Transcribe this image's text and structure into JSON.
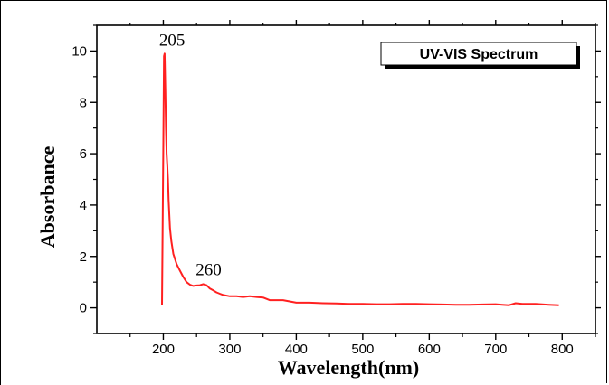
{
  "chart_data": {
    "type": "line",
    "title": "",
    "legend_label": "UV-VIS Spectrum",
    "legend_position": "top-right",
    "xlabel": "Wavelength(nm)",
    "ylabel": "Absorbance",
    "xlim": [
      100,
      850
    ],
    "ylim": [
      -1,
      11
    ],
    "xticks": [
      200,
      300,
      400,
      500,
      600,
      700,
      800
    ],
    "yticks": [
      0,
      2,
      4,
      6,
      8,
      10
    ],
    "grid": false,
    "series_color": "#ff2020",
    "annotations": [
      {
        "text": "205",
        "x": 205,
        "y": 10.0
      },
      {
        "text": "260",
        "x": 260,
        "y": 1.05
      }
    ],
    "series": [
      {
        "x": [
          198,
          200,
          201,
          202,
          203,
          204,
          205,
          206,
          207,
          208,
          210,
          212,
          215,
          220,
          225,
          230,
          235,
          240,
          245,
          250,
          255,
          260,
          265,
          270,
          275,
          280,
          285,
          290,
          300,
          310,
          320,
          330,
          340,
          350,
          360,
          370,
          380,
          390,
          400,
          420,
          440,
          460,
          480,
          500,
          520,
          540,
          560,
          580,
          600,
          620,
          640,
          660,
          680,
          700,
          710,
          720,
          730,
          740,
          760,
          780,
          795
        ],
        "y": [
          0.1,
          6.5,
          9.8,
          9.9,
          8.5,
          7.0,
          6.0,
          5.5,
          5.0,
          4.2,
          3.1,
          2.6,
          2.1,
          1.7,
          1.45,
          1.2,
          1.0,
          0.9,
          0.85,
          0.87,
          0.88,
          0.92,
          0.88,
          0.75,
          0.68,
          0.6,
          0.55,
          0.5,
          0.45,
          0.45,
          0.42,
          0.45,
          0.42,
          0.4,
          0.3,
          0.3,
          0.3,
          0.25,
          0.2,
          0.2,
          0.18,
          0.17,
          0.15,
          0.15,
          0.14,
          0.14,
          0.15,
          0.15,
          0.14,
          0.13,
          0.12,
          0.12,
          0.13,
          0.14,
          0.12,
          0.1,
          0.18,
          0.15,
          0.15,
          0.12,
          0.1
        ]
      }
    ]
  }
}
